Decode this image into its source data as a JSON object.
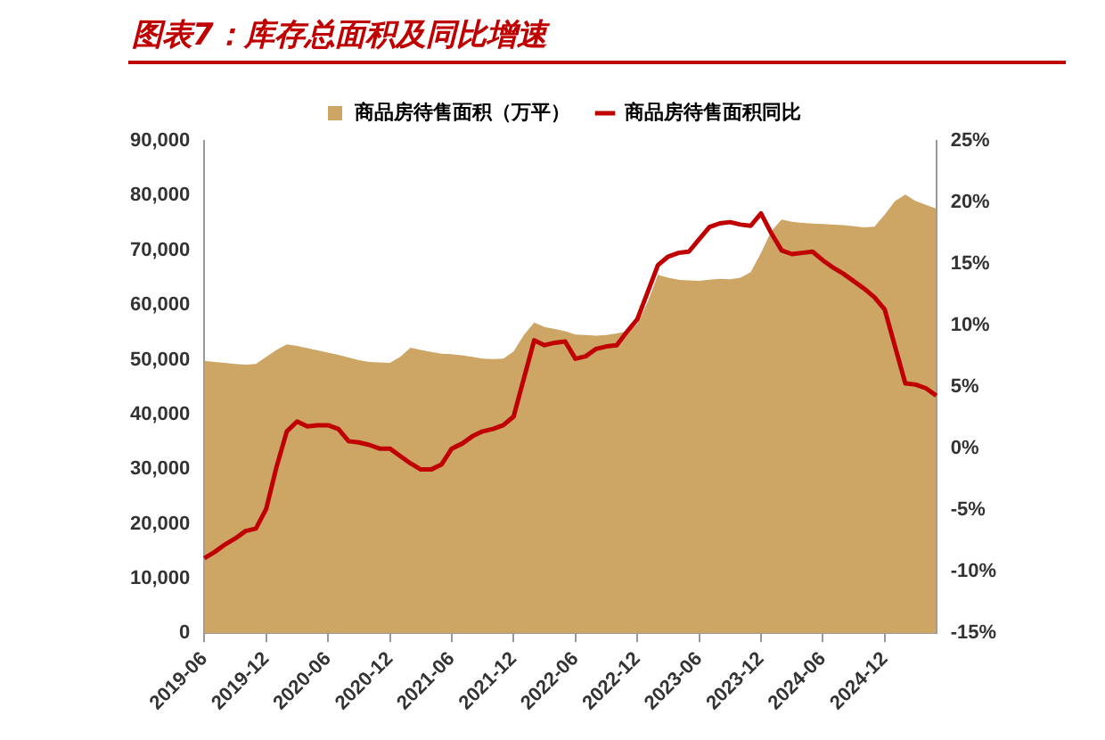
{
  "chart_data": {
    "type": "area",
    "title": "图表7：库存总面积及同比增速",
    "categories": [
      "2019-06",
      null,
      null,
      null,
      null,
      null,
      "2019-12",
      null,
      null,
      null,
      null,
      null,
      "2020-06",
      null,
      null,
      null,
      null,
      null,
      "2020-12",
      null,
      null,
      null,
      null,
      null,
      "2021-06",
      null,
      null,
      null,
      null,
      null,
      "2021-12",
      null,
      null,
      null,
      null,
      null,
      "2022-06",
      null,
      null,
      null,
      null,
      null,
      "2022-12",
      null,
      null,
      null,
      null,
      null,
      "2023-06",
      null,
      null,
      null,
      null,
      null,
      "2023-12",
      null,
      null,
      null,
      null,
      null,
      "2024-06",
      null,
      null,
      null,
      null,
      null,
      "2024-12",
      null,
      null,
      null,
      null,
      null
    ],
    "series": [
      {
        "name": "商品房待售面积（万平）",
        "type": "area",
        "color": "#cda565",
        "values": [
          49800,
          49600,
          49400,
          49200,
          49100,
          49200,
          50500,
          51800,
          52800,
          52500,
          52100,
          51700,
          51300,
          50900,
          50400,
          49900,
          49600,
          49500,
          49400,
          50500,
          52200,
          51800,
          51400,
          51100,
          51000,
          50800,
          50500,
          50200,
          50100,
          50200,
          51500,
          54500,
          56800,
          56000,
          55600,
          55200,
          54600,
          54500,
          54400,
          54500,
          54800,
          55200,
          56500,
          60500,
          65500,
          65000,
          64600,
          64500,
          64400,
          64600,
          64800,
          64700,
          65000,
          66000,
          69500,
          73500,
          75600,
          75200,
          75000,
          74900,
          74800,
          74700,
          74600,
          74400,
          74200,
          74300,
          76500,
          79000,
          80200,
          79000,
          78300,
          77600
        ]
      },
      {
        "name": "商品房待售面积同比",
        "type": "line",
        "axis": "y2",
        "color": "#c00000",
        "values": [
          -8.9,
          -8.4,
          -7.8,
          -7.3,
          -6.7,
          -6.5,
          -4.9,
          -1.5,
          1.4,
          2.2,
          1.8,
          1.9,
          1.9,
          1.6,
          0.6,
          0.5,
          0.3,
          0.0,
          0.0,
          -0.6,
          -1.2,
          -1.7,
          -1.7,
          -1.3,
          0.0,
          0.4,
          1.0,
          1.4,
          1.6,
          1.9,
          2.6,
          5.7,
          8.8,
          8.4,
          8.6,
          8.7,
          7.3,
          7.5,
          8.1,
          8.3,
          8.4,
          9.5,
          10.5,
          12.7,
          14.9,
          15.6,
          15.9,
          16.0,
          17.0,
          18.0,
          18.3,
          18.4,
          18.2,
          18.1,
          19.1,
          17.5,
          16.1,
          15.8,
          15.9,
          16.0,
          15.3,
          14.7,
          14.2,
          13.6,
          13.0,
          12.3,
          11.3,
          8.3,
          5.3,
          5.2,
          4.9,
          4.3
        ]
      }
    ],
    "ylim": [
      0,
      90000
    ],
    "yticks": [
      0,
      {
        "value": 10000,
        "label": "10,000"
      },
      {
        "value": 20000,
        "label": "20,000"
      },
      {
        "value": 30000,
        "label": "30,000"
      },
      {
        "value": 40000,
        "label": "40,000"
      },
      {
        "value": 50000,
        "label": "50,000"
      },
      {
        "value": 60000,
        "label": "60,000"
      },
      {
        "value": 70000,
        "label": "70,000"
      },
      {
        "value": 80000,
        "label": "80,000"
      },
      {
        "value": 90000,
        "label": "90,000"
      }
    ],
    "y2lim": [
      -15,
      25
    ],
    "y2ticks": [
      {
        "value": -15,
        "label": "-15%"
      },
      {
        "value": -10,
        "label": "-10%"
      },
      {
        "value": -5,
        "label": "-5%"
      },
      {
        "value": 0,
        "label": "0%"
      },
      {
        "value": 5,
        "label": "5%"
      },
      {
        "value": 10,
        "label": "10%"
      },
      {
        "value": 15,
        "label": "15%"
      },
      {
        "value": 20,
        "label": "20%"
      },
      {
        "value": 25,
        "label": "25%"
      }
    ],
    "legend": "top",
    "grid": false
  }
}
